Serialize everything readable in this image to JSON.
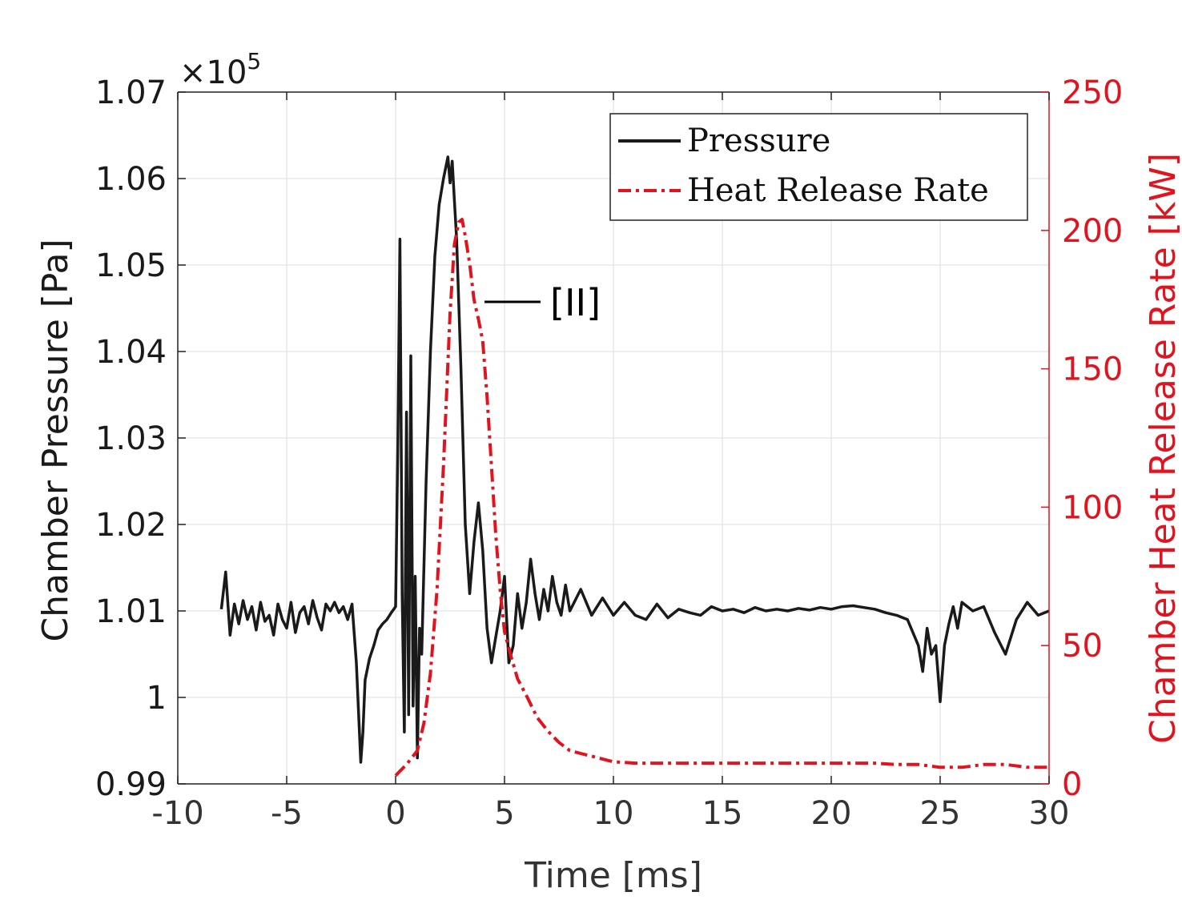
{
  "chart_data": {
    "type": "line",
    "title": "",
    "xlabel": "Time [ms]",
    "ylabel_left": "Chamber Pressure [Pa]",
    "ylabel_right": "Chamber Heat Release Rate [kW]",
    "y_exponent_label": "×10",
    "y_exponent_power": "5",
    "xlim": [
      -10,
      30
    ],
    "ylim_left": [
      0.99,
      1.07
    ],
    "ylim_right": [
      0,
      250
    ],
    "x_ticks": [
      -10,
      -5,
      0,
      5,
      10,
      15,
      20,
      25,
      30
    ],
    "y_left_ticks": [
      0.99,
      1,
      1.01,
      1.02,
      1.03,
      1.04,
      1.05,
      1.06,
      1.07
    ],
    "y_right_ticks": [
      0,
      50,
      100,
      150,
      200,
      250
    ],
    "grid": true,
    "legend_position": "top-right",
    "annotation": "[II]",
    "colors": {
      "pressure": "#1a1a1a",
      "hrr": "#e0141e",
      "right_axis": "#e0141e"
    },
    "series": [
      {
        "name": "Pressure",
        "axis": "left",
        "style": "solid",
        "x": [
          -8,
          -7.8,
          -7.6,
          -7.4,
          -7.2,
          -7,
          -6.8,
          -6.6,
          -6.4,
          -6.2,
          -6,
          -5.8,
          -5.6,
          -5.4,
          -5.2,
          -5,
          -4.8,
          -4.6,
          -4.4,
          -4.2,
          -4,
          -3.8,
          -3.6,
          -3.4,
          -3.2,
          -3,
          -2.8,
          -2.6,
          -2.4,
          -2.2,
          -2,
          -1.8,
          -1.6,
          -1.5,
          -1.4,
          -1.2,
          -1,
          -0.8,
          -0.6,
          -0.4,
          -0.2,
          0,
          0.1,
          0.2,
          0.3,
          0.4,
          0.5,
          0.6,
          0.7,
          0.8,
          0.9,
          1,
          1.1,
          1.2,
          1.4,
          1.6,
          1.8,
          2,
          2.2,
          2.4,
          2.5,
          2.6,
          2.7,
          2.8,
          3,
          3.2,
          3.4,
          3.6,
          3.8,
          4,
          4.2,
          4.4,
          4.6,
          4.8,
          5,
          5.2,
          5.4,
          5.6,
          5.8,
          6,
          6.2,
          6.4,
          6.6,
          6.8,
          7,
          7.2,
          7.4,
          7.6,
          7.8,
          8,
          8.5,
          9,
          9.5,
          10,
          10.5,
          11,
          11.5,
          12,
          12.5,
          13,
          13.5,
          14,
          14.5,
          15,
          15.5,
          16,
          16.5,
          17,
          17.5,
          18,
          18.5,
          19,
          19.5,
          20,
          20.5,
          21,
          21.5,
          22,
          22.5,
          23,
          23.5,
          24,
          24.2,
          24.4,
          24.6,
          24.8,
          25,
          25.2,
          25.4,
          25.6,
          25.8,
          26,
          26.5,
          27,
          27.5,
          28,
          28.5,
          29,
          29.5,
          30
        ],
        "y": [
          1.0102,
          1.0145,
          1.0072,
          1.0108,
          1.0085,
          1.0112,
          1.009,
          1.0105,
          1.0078,
          1.011,
          1.0088,
          1.0095,
          1.0072,
          1.0108,
          1.009,
          1.008,
          1.011,
          1.0075,
          1.0098,
          1.0105,
          1.0085,
          1.0112,
          1.0092,
          1.0078,
          1.0108,
          1.01,
          1.011,
          1.0098,
          1.0105,
          1.009,
          1.0108,
          1.004,
          0.9925,
          0.996,
          1.002,
          1.0045,
          1.006,
          1.0078,
          1.0085,
          1.009,
          1.0098,
          1.0105,
          1.0285,
          1.053,
          1.012,
          0.996,
          1.033,
          0.998,
          1.0395,
          0.999,
          1.014,
          0.993,
          1.008,
          1.005,
          1.025,
          1.04,
          1.051,
          1.057,
          1.06,
          1.0625,
          1.0595,
          1.062,
          1.0575,
          1.053,
          1.038,
          1.02,
          1.012,
          1.018,
          1.0225,
          1.017,
          1.008,
          1.004,
          1.007,
          1.01,
          1.014,
          1.004,
          1.006,
          1.012,
          1.008,
          1.011,
          1.016,
          1.012,
          1.009,
          1.0125,
          1.01,
          1.014,
          1.011,
          1.0095,
          1.013,
          1.01,
          1.0125,
          1.0095,
          1.0115,
          1.0095,
          1.011,
          1.0095,
          1.009,
          1.0108,
          1.0092,
          1.0102,
          1.0098,
          1.0095,
          1.0105,
          1.01,
          1.0102,
          1.0098,
          1.0104,
          1.01,
          1.0102,
          1.01,
          1.0103,
          1.0101,
          1.0104,
          1.0102,
          1.0105,
          1.0106,
          1.0104,
          1.0102,
          1.0098,
          1.0095,
          1.009,
          1.006,
          1.003,
          1.008,
          1.005,
          1.006,
          0.9995,
          1.006,
          1.0085,
          1.0105,
          1.008,
          1.011,
          1.01,
          1.0105,
          1.0075,
          1.005,
          1.009,
          1.011,
          1.0095,
          1.01
        ]
      },
      {
        "name": "Heat Release Rate",
        "axis": "right",
        "style": "dash-dot",
        "x": [
          0,
          0.5,
          1,
          1.3,
          1.6,
          1.9,
          2.2,
          2.5,
          2.7,
          2.9,
          3.05,
          3.2,
          3.4,
          3.6,
          3.8,
          4,
          4.2,
          4.4,
          4.6,
          4.8,
          5,
          5.3,
          5.6,
          6,
          6.5,
          7,
          7.5,
          8,
          8.5,
          9,
          9.5,
          10,
          11,
          12,
          13,
          14,
          15,
          16,
          17,
          18,
          19,
          20,
          21,
          22,
          23,
          24,
          25,
          26,
          27,
          28,
          29,
          30
        ],
        "y": [
          3,
          7,
          12,
          22,
          40,
          70,
          115,
          170,
          195,
          203,
          204,
          198,
          188,
          175,
          168,
          160,
          140,
          115,
          90,
          70,
          55,
          46,
          38,
          32,
          24,
          19,
          15,
          12,
          11,
          10,
          9,
          8,
          7.5,
          7.5,
          7.5,
          7.5,
          7.5,
          7.5,
          7.5,
          7.5,
          7.5,
          7.5,
          7.5,
          7.5,
          7,
          7,
          6,
          6,
          7,
          7,
          6,
          6
        ]
      }
    ]
  }
}
